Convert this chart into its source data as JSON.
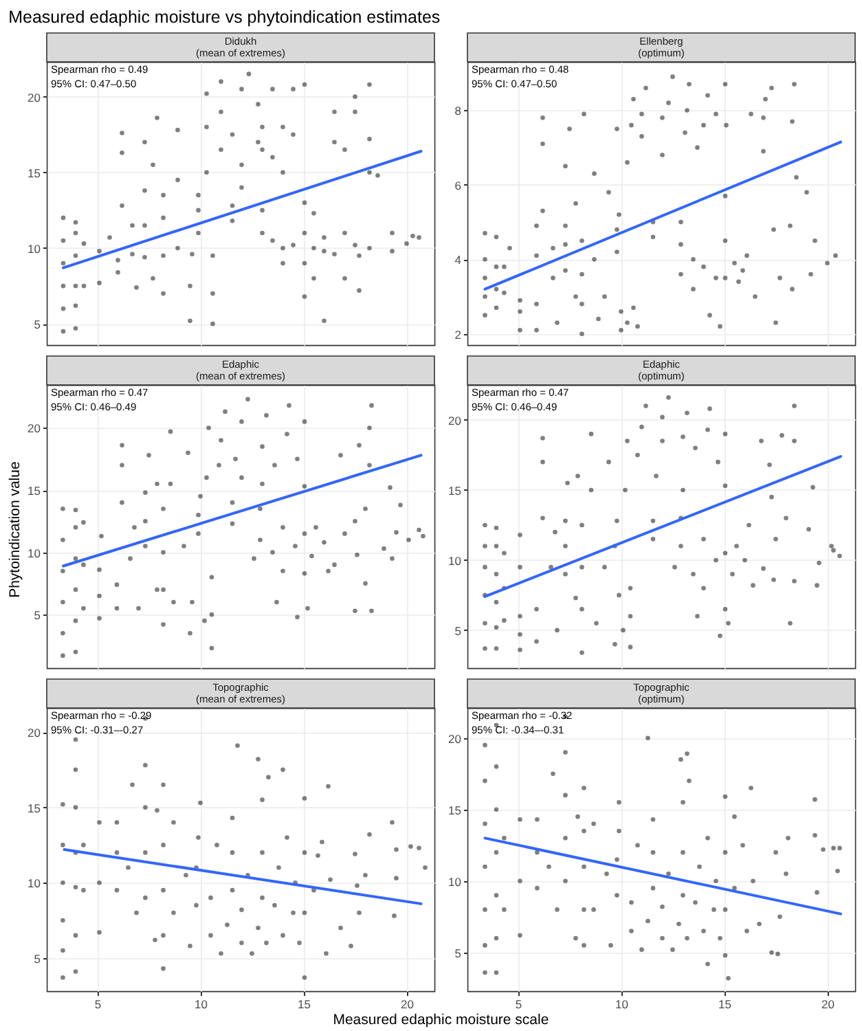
{
  "chart_data": [
    {
      "type": "other",
      "title": "Measured edaphic moisture vs phytoindication estimates"
    },
    {
      "type": "scatter",
      "title": "Didukh",
      "subtitle": "(mean of extremes)",
      "annotations": [
        "Spearman rho = 0.49",
        "95% CI: 0.47–0.50"
      ],
      "xlim": [
        2.55,
        21.35
      ],
      "xticks": [
        5,
        10,
        15,
        20
      ],
      "ylim": [
        3.6,
        22.3
      ],
      "yticks": [
        5,
        10,
        15,
        20
      ],
      "grid": true,
      "tick_labels": "y",
      "series": [
        {
          "marker": "circle",
          "color": "#000000",
          "x": [
            3.35,
            3.35,
            3.35,
            3.35,
            3.35,
            3.35,
            3.95,
            3.95,
            3.95,
            3.95,
            3.95,
            3.95,
            4.35,
            4.35,
            5.1,
            5.1,
            5.6,
            6.0,
            6.0,
            6.2,
            6.2,
            6.2,
            6.7,
            6.7,
            6.9,
            7.3,
            7.3,
            7.3,
            7.3,
            7.7,
            7.7,
            7.9,
            8.2,
            8.2,
            8.2,
            8.2,
            8.9,
            8.9,
            8.9,
            9.5,
            9.5,
            9.6,
            9.9,
            9.9,
            9.9,
            10.3,
            10.3,
            10.3,
            10.6,
            10.6,
            10.6,
            11,
            11,
            11,
            11.55,
            11.55,
            11.55,
            12,
            12,
            12,
            12.35,
            12.8,
            12.8,
            13,
            13,
            13,
            13,
            13.5,
            13.5,
            13.5,
            14,
            14,
            14,
            14,
            14.5,
            14.5,
            14.5,
            15.05,
            15.05,
            15.05,
            15.05,
            15.05,
            15.5,
            15.5,
            15.5,
            16,
            16,
            16,
            16.5,
            16.5,
            16.5,
            17,
            17,
            17,
            17.5,
            17.5,
            17.5,
            17.7,
            17.7,
            18.2,
            18.2,
            18.2,
            18.2,
            18.6,
            19.3,
            19.3,
            20,
            20.3,
            20.6
          ],
          "values": [
            4.5,
            6,
            7.5,
            9,
            10.5,
            12,
            4.7,
            6.2,
            7.5,
            9.5,
            11,
            11.7,
            7.5,
            10.3,
            7.7,
            9.8,
            10.7,
            8.4,
            9.2,
            16.3,
            17.6,
            12.8,
            9.6,
            11.5,
            7.4,
            9.4,
            11.5,
            13.8,
            17,
            8,
            15.5,
            18.6,
            7,
            9.5,
            12,
            13.5,
            10,
            14.5,
            17.8,
            5.2,
            7.5,
            9.6,
            11,
            12.5,
            13.5,
            15,
            18,
            20.2,
            5,
            7,
            9.5,
            16.5,
            19,
            21,
            11.8,
            12.8,
            17.5,
            14,
            15.5,
            20.5,
            21.5,
            17,
            19.5,
            11,
            12.5,
            16.5,
            18,
            10.5,
            16,
            20.5,
            9,
            10,
            15,
            18,
            10.2,
            17.5,
            20.5,
            6.8,
            9,
            11,
            13,
            20.8,
            8,
            10,
            12.3,
            5.2,
            9.8,
            10.7,
            9.6,
            17,
            19,
            8,
            11,
            16.5,
            10.2,
            19,
            20,
            7.2,
            9.5,
            10,
            15,
            17.2,
            20.8,
            14.8,
            9.8,
            11,
            10.3,
            10.8,
            10.7
          ]
        },
        {
          "type": "line",
          "color": "#3366ff",
          "x": [
            3.35,
            20.7
          ],
          "values": [
            8.7,
            16.4
          ]
        }
      ]
    },
    {
      "type": "scatter",
      "title": "Ellenberg",
      "subtitle": "(optimum)",
      "annotations": [
        "Spearman rho = 0.48",
        "95% CI: 0.47–0.50"
      ],
      "xlim": [
        2.55,
        21.35
      ],
      "xticks": [
        5,
        10,
        15,
        20
      ],
      "ylim": [
        1.7,
        9.3
      ],
      "yticks": [
        2,
        4,
        6,
        8
      ],
      "grid": true,
      "tick_labels": "y",
      "series": [
        {
          "marker": "circle",
          "color": "#000000",
          "x": [
            3.4,
            3.4,
            3.4,
            3.4,
            3.4,
            3.95,
            3.95,
            3.95,
            3.95,
            4.33,
            4.33,
            4.6,
            5.1,
            5.1,
            5.1,
            5.9,
            5.9,
            5.9,
            5.9,
            6.2,
            6.2,
            6.2,
            6.7,
            6.7,
            6.9,
            7.3,
            7.3,
            7.3,
            7.3,
            7.5,
            7.8,
            7.8,
            8.1,
            8.1,
            8.1,
            8.1,
            8.2,
            8.7,
            8.7,
            8.9,
            9.2,
            9.4,
            9.8,
            9.8,
            9.9,
            9.8,
            10,
            10,
            10.3,
            10.8,
            10.6,
            10.3,
            10.5,
            10.6,
            11,
            11,
            11.2,
            11.55,
            11.55,
            12,
            12,
            12.3,
            12.5,
            12.9,
            12.9,
            12.9,
            13.1,
            13.2,
            13.3,
            13.5,
            13.5,
            13.7,
            14,
            14,
            14.2,
            14.3,
            14.6,
            14.6,
            14.8,
            15.05,
            15.05,
            15.05,
            15.05,
            15.1,
            15.5,
            15.7,
            15.9,
            16.1,
            16.3,
            16.5,
            16.9,
            16.9,
            17,
            17.3,
            17.4,
            17.5,
            17.7,
            18.2,
            18.3,
            18.3,
            18.4,
            18.5,
            19,
            19.2,
            19.4,
            20,
            20.4
          ],
          "values": [
            2.5,
            3,
            3.5,
            4,
            4.7,
            2.7,
            3.2,
            3.8,
            4.6,
            3.1,
            3.8,
            4.3,
            2.1,
            2.6,
            2.9,
            2.1,
            2.8,
            4.1,
            4.9,
            7.1,
            7.8,
            5.3,
            3.5,
            4.3,
            2.3,
            3.7,
            4.4,
            4.9,
            6.5,
            7.5,
            5.5,
            3,
            2,
            2.8,
            3.6,
            4.5,
            7.9,
            4,
            6.3,
            2.4,
            3,
            5.8,
            4.2,
            4.8,
            5.2,
            7.5,
            2.1,
            2.6,
            2.3,
            2.2,
            2.7,
            6.6,
            7.6,
            8.3,
            7.3,
            7.9,
            8.6,
            4.6,
            5,
            6.8,
            7.8,
            8.2,
            8.9,
            3.6,
            4.4,
            5,
            7.4,
            8,
            8.7,
            3.2,
            4,
            7,
            3.8,
            7.6,
            8.4,
            2.5,
            3.5,
            7.9,
            2.2,
            3.5,
            4.5,
            5.7,
            8.7,
            7.6,
            3.9,
            3.4,
            3.7,
            4.1,
            7.9,
            3,
            6.9,
            7.8,
            8.3,
            8.6,
            4.8,
            2.3,
            3.5,
            4.9,
            3.2,
            7.7,
            8.7,
            6.2,
            5.8,
            3.6,
            4.5,
            3.9,
            4.1
          ]
        },
        {
          "type": "line",
          "color": "#3366ff",
          "x": [
            3.4,
            20.65
          ],
          "values": [
            3.2,
            7.15
          ]
        }
      ]
    },
    {
      "type": "scatter",
      "title": "Edaphic",
      "subtitle": "(mean of extremes)",
      "annotations": [
        "Spearman rho = 0.47",
        "95% CI: 0.46–0.49"
      ],
      "ylabel": "Phytoindication value",
      "xlim": [
        2.55,
        21.35
      ],
      "xticks": [
        5,
        10,
        15,
        20
      ],
      "ylim": [
        0.7,
        23.45
      ],
      "yticks": [
        5,
        10,
        15,
        20
      ],
      "grid": true,
      "tick_labels": "y",
      "series": [
        {
          "marker": "circle",
          "color": "#000000",
          "x": [
            3.33,
            3.33,
            3.33,
            3.33,
            3.33,
            3.33,
            3.95,
            3.95,
            3.95,
            3.95,
            3.95,
            3.95,
            4.33,
            4.33,
            4.33,
            5.1,
            5.1,
            5.1,
            5.2,
            5.95,
            5.95,
            6.2,
            6.2,
            6.2,
            6.6,
            6.8,
            7,
            7.33,
            7.33,
            7.33,
            7.5,
            7.9,
            7.9,
            8.2,
            8.2,
            8.2,
            8.2,
            8.55,
            8.55,
            8.7,
            9.2,
            9.4,
            9.5,
            9.6,
            9.9,
            9.9,
            10,
            10.2,
            10.3,
            10.4,
            10.55,
            10.55,
            10.55,
            10.9,
            11,
            11.2,
            11.55,
            11.55,
            11.7,
            12,
            12,
            12.3,
            12.6,
            12.9,
            12.9,
            13,
            13,
            13.2,
            13.5,
            13.6,
            13.7,
            14,
            14,
            14.2,
            14.3,
            14.6,
            14.7,
            14.7,
            15.05,
            15.05,
            15.05,
            15.05,
            15.2,
            15.4,
            15.6,
            16,
            16.2,
            16.5,
            16.8,
            17,
            17.5,
            17.5,
            17.6,
            17.7,
            18,
            18,
            18.2,
            18.2,
            18.3,
            18.3,
            18.9,
            19.2,
            19.3,
            19.5,
            19.7,
            20.1,
            20.6,
            20.8
          ],
          "values": [
            1.7,
            3.5,
            6,
            8.5,
            11,
            13.5,
            2,
            4.5,
            7,
            9.5,
            12,
            13.4,
            5.5,
            9,
            12.4,
            4.7,
            6.5,
            8.6,
            11.3,
            5.5,
            7.4,
            17,
            18.6,
            14,
            9.5,
            12,
            5.5,
            10.5,
            12.5,
            14.8,
            17.8,
            7,
            15.5,
            4.2,
            7,
            10,
            13.5,
            15.5,
            19.7,
            6,
            10.5,
            18,
            3.5,
            6,
            11.5,
            13,
            14.5,
            4.5,
            16,
            20,
            2.3,
            5,
            8,
            17,
            19,
            21.3,
            12.3,
            14,
            17.5,
            16,
            20.5,
            22.3,
            9.5,
            11,
            13.5,
            15.5,
            18.5,
            21,
            10,
            17,
            6,
            8.5,
            12,
            19.5,
            21.8,
            10.5,
            4.8,
            17.5,
            8.3,
            11.5,
            15.3,
            20.5,
            5.5,
            9.7,
            12,
            10.8,
            8.5,
            9,
            17.8,
            11.5,
            12.5,
            5.3,
            9.8,
            18.6,
            7.5,
            13.5,
            17,
            20,
            21.8,
            5.3,
            10.3,
            15.2,
            9.5,
            11.6,
            13.8,
            11,
            11.8,
            11.3
          ]
        },
        {
          "type": "line",
          "color": "#3366ff",
          "x": [
            3.35,
            20.7
          ],
          "values": [
            8.9,
            17.8
          ]
        }
      ]
    },
    {
      "type": "scatter",
      "title": "Edaphic",
      "subtitle": "(optimum)",
      "annotations": [
        "Spearman rho = 0.47",
        "95% CI: 0.46–0.49"
      ],
      "xlim": [
        2.55,
        21.35
      ],
      "xticks": [
        5,
        10,
        15,
        20
      ],
      "ylim": [
        2.3,
        22.5
      ],
      "yticks": [
        5,
        10,
        15,
        20
      ],
      "grid": true,
      "tick_labels": "y",
      "series": [
        {
          "marker": "circle",
          "color": "#000000",
          "x": [
            3.4,
            3.4,
            3.4,
            3.4,
            3.4,
            3.4,
            3.95,
            3.95,
            3.95,
            3.95,
            3.95,
            3.95,
            4.33,
            4.33,
            4.33,
            5.1,
            5.1,
            5.1,
            5.1,
            5.1,
            5.9,
            5.9,
            6.2,
            6.2,
            6.2,
            6.6,
            6.8,
            6.9,
            7.3,
            7.3,
            7.3,
            7.4,
            7.8,
            7.9,
            8.1,
            8.1,
            8.1,
            8.1,
            8.55,
            8.55,
            8.8,
            9.2,
            9.4,
            9.7,
            9.7,
            9.8,
            9.9,
            10.1,
            10.2,
            10.3,
            10.45,
            10.45,
            10.45,
            10.8,
            11,
            11.2,
            11.55,
            11.55,
            11.7,
            12,
            12,
            12.3,
            12.6,
            12.9,
            12.9,
            13,
            13,
            13.2,
            13.5,
            13.6,
            13.7,
            14,
            14,
            14.2,
            14.3,
            14.6,
            14.8,
            14.7,
            15.05,
            15.05,
            15.05,
            15.05,
            15.2,
            15.4,
            15.6,
            16,
            16.2,
            16.4,
            16.8,
            16.9,
            17.2,
            17.3,
            17.4,
            17.5,
            17.8,
            18,
            18.2,
            18.4,
            18.4,
            18.4,
            19.1,
            19.3,
            19.5,
            19.6,
            20.2,
            20.3,
            20.6
          ],
          "values": [
            3.7,
            5.5,
            7.5,
            9.5,
            11,
            12.5,
            3.7,
            5.2,
            7,
            9,
            11,
            12.3,
            5.7,
            8,
            10.5,
            3.6,
            4.7,
            6,
            9.5,
            11.8,
            4.2,
            6.5,
            17,
            18.7,
            13,
            9.5,
            12,
            5,
            9,
            11,
            12.8,
            15.5,
            7.3,
            16,
            3.4,
            6.5,
            9.5,
            12.5,
            15,
            19,
            5.5,
            9.5,
            17,
            4,
            11,
            12.8,
            7.5,
            5,
            15,
            18.5,
            3.8,
            6,
            8,
            17.5,
            19.5,
            21,
            11.5,
            12.8,
            16,
            18.5,
            20.2,
            21.6,
            9.5,
            11,
            13,
            15,
            18.8,
            20.5,
            9,
            18,
            6,
            8,
            11.5,
            19.3,
            20.8,
            10,
            4.6,
            17,
            6.5,
            10.5,
            15.3,
            19,
            5.5,
            9,
            11,
            10,
            12.5,
            8.2,
            18.5,
            9.4,
            16.8,
            14.5,
            8.6,
            11.5,
            18.9,
            13,
            5.5,
            8.5,
            18.5,
            21,
            12.2,
            15.2,
            8.2,
            9.8,
            11,
            10.7,
            10.3
          ]
        },
        {
          "type": "line",
          "color": "#3366ff",
          "x": [
            3.4,
            20.65
          ],
          "values": [
            7.4,
            17.4
          ]
        }
      ]
    },
    {
      "type": "scatter",
      "title": "Topographic",
      "subtitle": "(mean of extremes)",
      "annotations": [
        "Spearman rho = -0.29",
        "95% CI: -0.31–-0.27"
      ],
      "xlabel": "Measured edaphic moisture scale",
      "xlim": [
        2.55,
        21.35
      ],
      "xticks": [
        5,
        10,
        15,
        20
      ],
      "ylim": [
        2.8,
        21.6
      ],
      "yticks": [
        5,
        10,
        15,
        20
      ],
      "grid": true,
      "series": [
        {
          "marker": "circle",
          "color": "#000000",
          "x": [
            3.33,
            3.33,
            3.33,
            3.33,
            3.33,
            3.33,
            3.95,
            3.95,
            3.95,
            3.95,
            3.95,
            3.95,
            3.95,
            4.33,
            4.33,
            5.1,
            5.1,
            5.1,
            5.95,
            5.95,
            5.95,
            6.5,
            6.7,
            6.9,
            7.33,
            7.33,
            7.33,
            7.33,
            7.33,
            7.8,
            7.9,
            8.2,
            8.2,
            8.2,
            8.2,
            8.2,
            8.7,
            8.7,
            9.3,
            9.5,
            9.8,
            9.8,
            9.9,
            10,
            10.5,
            10.5,
            10.8,
            11,
            11.3,
            11.55,
            11.55,
            11.55,
            11.8,
            12,
            12,
            12.3,
            12.5,
            12.8,
            12.8,
            13,
            13,
            13,
            13.2,
            13.3,
            13.6,
            13.8,
            14,
            14,
            14.2,
            14.5,
            14.6,
            14.8,
            15.05,
            15.05,
            15.05,
            15.05,
            15.5,
            15.7,
            15.9,
            16.1,
            16.2,
            16.3,
            16.8,
            17.3,
            17.5,
            17.6,
            17.7,
            18,
            18.2,
            19.3,
            19.4,
            19.5,
            19.5,
            20.2,
            20.6,
            20.9
          ],
          "values": [
            3.7,
            5.5,
            7.5,
            10,
            12.5,
            15.2,
            4.1,
            6.5,
            9.7,
            12,
            15,
            17.5,
            19.5,
            9.5,
            12.5,
            6.7,
            10,
            14,
            9.5,
            12,
            14,
            11,
            16.5,
            8,
            9,
            12,
            15,
            17.8,
            20.9,
            6.2,
            14.8,
            4.3,
            6.5,
            9.5,
            12.5,
            16.5,
            8,
            14,
            10.5,
            5.8,
            8.5,
            11,
            13,
            15.3,
            6.5,
            9,
            12.5,
            5.3,
            7.2,
            9.5,
            12,
            14.3,
            19.1,
            6,
            8.2,
            10.5,
            5.3,
            7,
            18.2,
            9,
            12,
            15.5,
            6,
            17,
            8.5,
            11,
            6.5,
            17.5,
            13,
            8,
            10,
            6,
            3.7,
            8,
            12,
            15.6,
            9.5,
            11.8,
            12.7,
            5.3,
            16.4,
            10.2,
            7,
            5.8,
            11.9,
            9.8,
            8,
            10.5,
            13.2,
            14,
            7.8,
            10.3,
            12.2,
            12.4,
            12.3,
            11
          ]
        },
        {
          "type": "line",
          "color": "#3366ff",
          "x": [
            3.4,
            20.7
          ],
          "values": [
            12.2,
            8.6
          ]
        }
      ]
    },
    {
      "type": "scatter",
      "title": "Topographic",
      "subtitle": "(optimum)",
      "annotations": [
        "Spearman rho = -0.32",
        "95% CI: -0.34–-0.31"
      ],
      "xlim": [
        2.55,
        21.35
      ],
      "xticks": [
        5,
        10,
        15,
        20
      ],
      "ylim": [
        2.3,
        22.1
      ],
      "yticks": [
        5,
        10,
        15,
        20
      ],
      "grid": true,
      "series": [
        {
          "marker": "circle",
          "color": "#000000",
          "x": [
            3.4,
            3.4,
            3.4,
            3.4,
            3.4,
            3.4,
            3.4,
            3.95,
            3.95,
            3.95,
            3.95,
            3.95,
            3.95,
            3.95,
            4.33,
            4.33,
            5.1,
            5.1,
            5.1,
            5.93,
            5.93,
            5.93,
            6.5,
            6.7,
            6.9,
            7.3,
            7.3,
            7.3,
            7.3,
            7.3,
            7.8,
            7.9,
            8.2,
            8.2,
            8.2,
            8.2,
            8.2,
            8.67,
            8.67,
            9.3,
            9.5,
            9.8,
            9.8,
            9.9,
            9.9,
            10.5,
            10.5,
            10.8,
            11,
            11.3,
            11.3,
            11.55,
            11.55,
            11.55,
            12,
            12,
            12.3,
            12.5,
            12.8,
            12.9,
            13,
            13,
            13,
            13.2,
            13.3,
            13.2,
            13.6,
            13.8,
            14,
            14.2,
            14.2,
            14.5,
            14.6,
            14.8,
            15.05,
            15.05,
            15.05,
            15.05,
            15.2,
            15.5,
            15.5,
            15.9,
            16.1,
            16.3,
            16.4,
            16.7,
            17.3,
            17.5,
            17.6,
            17.7,
            18,
            18.1,
            19.4,
            19.4,
            19.5,
            19.8,
            20.3,
            20.5,
            20.6
          ],
          "values": [
            3.6,
            5.5,
            8,
            11,
            14,
            17,
            19.5,
            3.6,
            6,
            9,
            12,
            15,
            18,
            20.9,
            8,
            13,
            6.2,
            10,
            14.3,
            9.5,
            12,
            14.3,
            11,
            17.5,
            8,
            10,
            13,
            16,
            19,
            21.5,
            6,
            14.5,
            5.5,
            8,
            11,
            13.5,
            16.5,
            8,
            14,
            10.5,
            5.5,
            9,
            11.5,
            13.5,
            15.5,
            6.5,
            8.5,
            12.5,
            5.2,
            7.2,
            20,
            9.5,
            12,
            14.3,
            6,
            8.2,
            10.5,
            5.2,
            7,
            18.5,
            9,
            12,
            15.5,
            6,
            17,
            18.9,
            8.5,
            11,
            6.5,
            4.2,
            13,
            8,
            10,
            6,
            4.8,
            8,
            12,
            15.9,
            3.2,
            9.5,
            14.5,
            12.5,
            6.5,
            16.5,
            10,
            7,
            5,
            12,
            4.9,
            7.5,
            10.5,
            13,
            13.2,
            15.7,
            9.2,
            12.2,
            12.3,
            10.7,
            12.3
          ]
        },
        {
          "type": "line",
          "color": "#3366ff",
          "x": [
            3.4,
            20.65
          ],
          "values": [
            13,
            7.7
          ]
        }
      ]
    }
  ]
}
